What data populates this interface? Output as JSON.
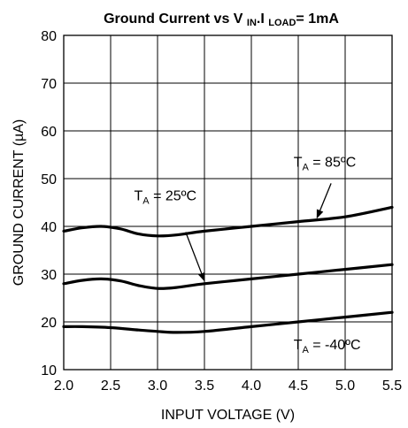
{
  "chart_data": {
    "type": "line",
    "title_main": "Ground Current vs V ",
    "title_sub1": "IN",
    "title_mid": ".I ",
    "title_sub2": "LOAD",
    "title_end": "= 1mA",
    "xlabel": "INPUT VOLTAGE (V)",
    "ylabel": "GROUND CURRENT (µA)",
    "xlim": [
      2.0,
      5.5
    ],
    "ylim": [
      10,
      80
    ],
    "x_ticks": [
      "2.0",
      "2.5",
      "3.0",
      "3.5",
      "4.0",
      "4.5",
      "5.0",
      "5.5"
    ],
    "y_ticks": [
      "10",
      "20",
      "30",
      "40",
      "50",
      "60",
      "70",
      "80"
    ],
    "grid": true,
    "series": [
      {
        "name": "TA = 85°C",
        "x": [
          2.0,
          2.2,
          2.4,
          2.6,
          2.8,
          3.0,
          3.2,
          3.5,
          4.0,
          4.5,
          5.0,
          5.5
        ],
        "y": [
          39,
          39.7,
          40,
          39.5,
          38.4,
          38,
          38.2,
          39,
          40,
          41,
          42,
          44
        ]
      },
      {
        "name": "TA = 25°C",
        "x": [
          2.0,
          2.2,
          2.4,
          2.6,
          2.8,
          3.0,
          3.2,
          3.5,
          4.0,
          4.5,
          5.0,
          5.5
        ],
        "y": [
          28,
          28.7,
          29,
          28.6,
          27.6,
          27,
          27.2,
          28,
          29,
          30,
          31,
          32
        ]
      },
      {
        "name": "TA = -40°C",
        "x": [
          2.0,
          2.2,
          2.5,
          2.8,
          3.0,
          3.2,
          3.5,
          4.0,
          4.5,
          5.0,
          5.5
        ],
        "y": [
          19,
          19,
          18.8,
          18.3,
          18,
          17.8,
          18,
          19,
          20,
          21,
          22
        ]
      }
    ],
    "annotations": [
      {
        "prefix": "T",
        "sub": "A",
        "suffix": " = 85ºC",
        "x": 4.45,
        "y": 52.5,
        "arrow_from": [
          4.85,
          49
        ],
        "arrow_to": [
          4.7,
          41.8
        ]
      },
      {
        "prefix": "T",
        "sub": "A",
        "suffix": " = 25ºC",
        "x": 2.75,
        "y": 45.5,
        "arrow_from": [
          3.3,
          38.8
        ],
        "arrow_to": [
          3.5,
          28.6
        ]
      },
      {
        "prefix": "T",
        "sub": "A",
        "suffix": " = -40ºC",
        "x": 4.45,
        "y": 14.3,
        "arrow_from": null,
        "arrow_to": null
      }
    ]
  }
}
